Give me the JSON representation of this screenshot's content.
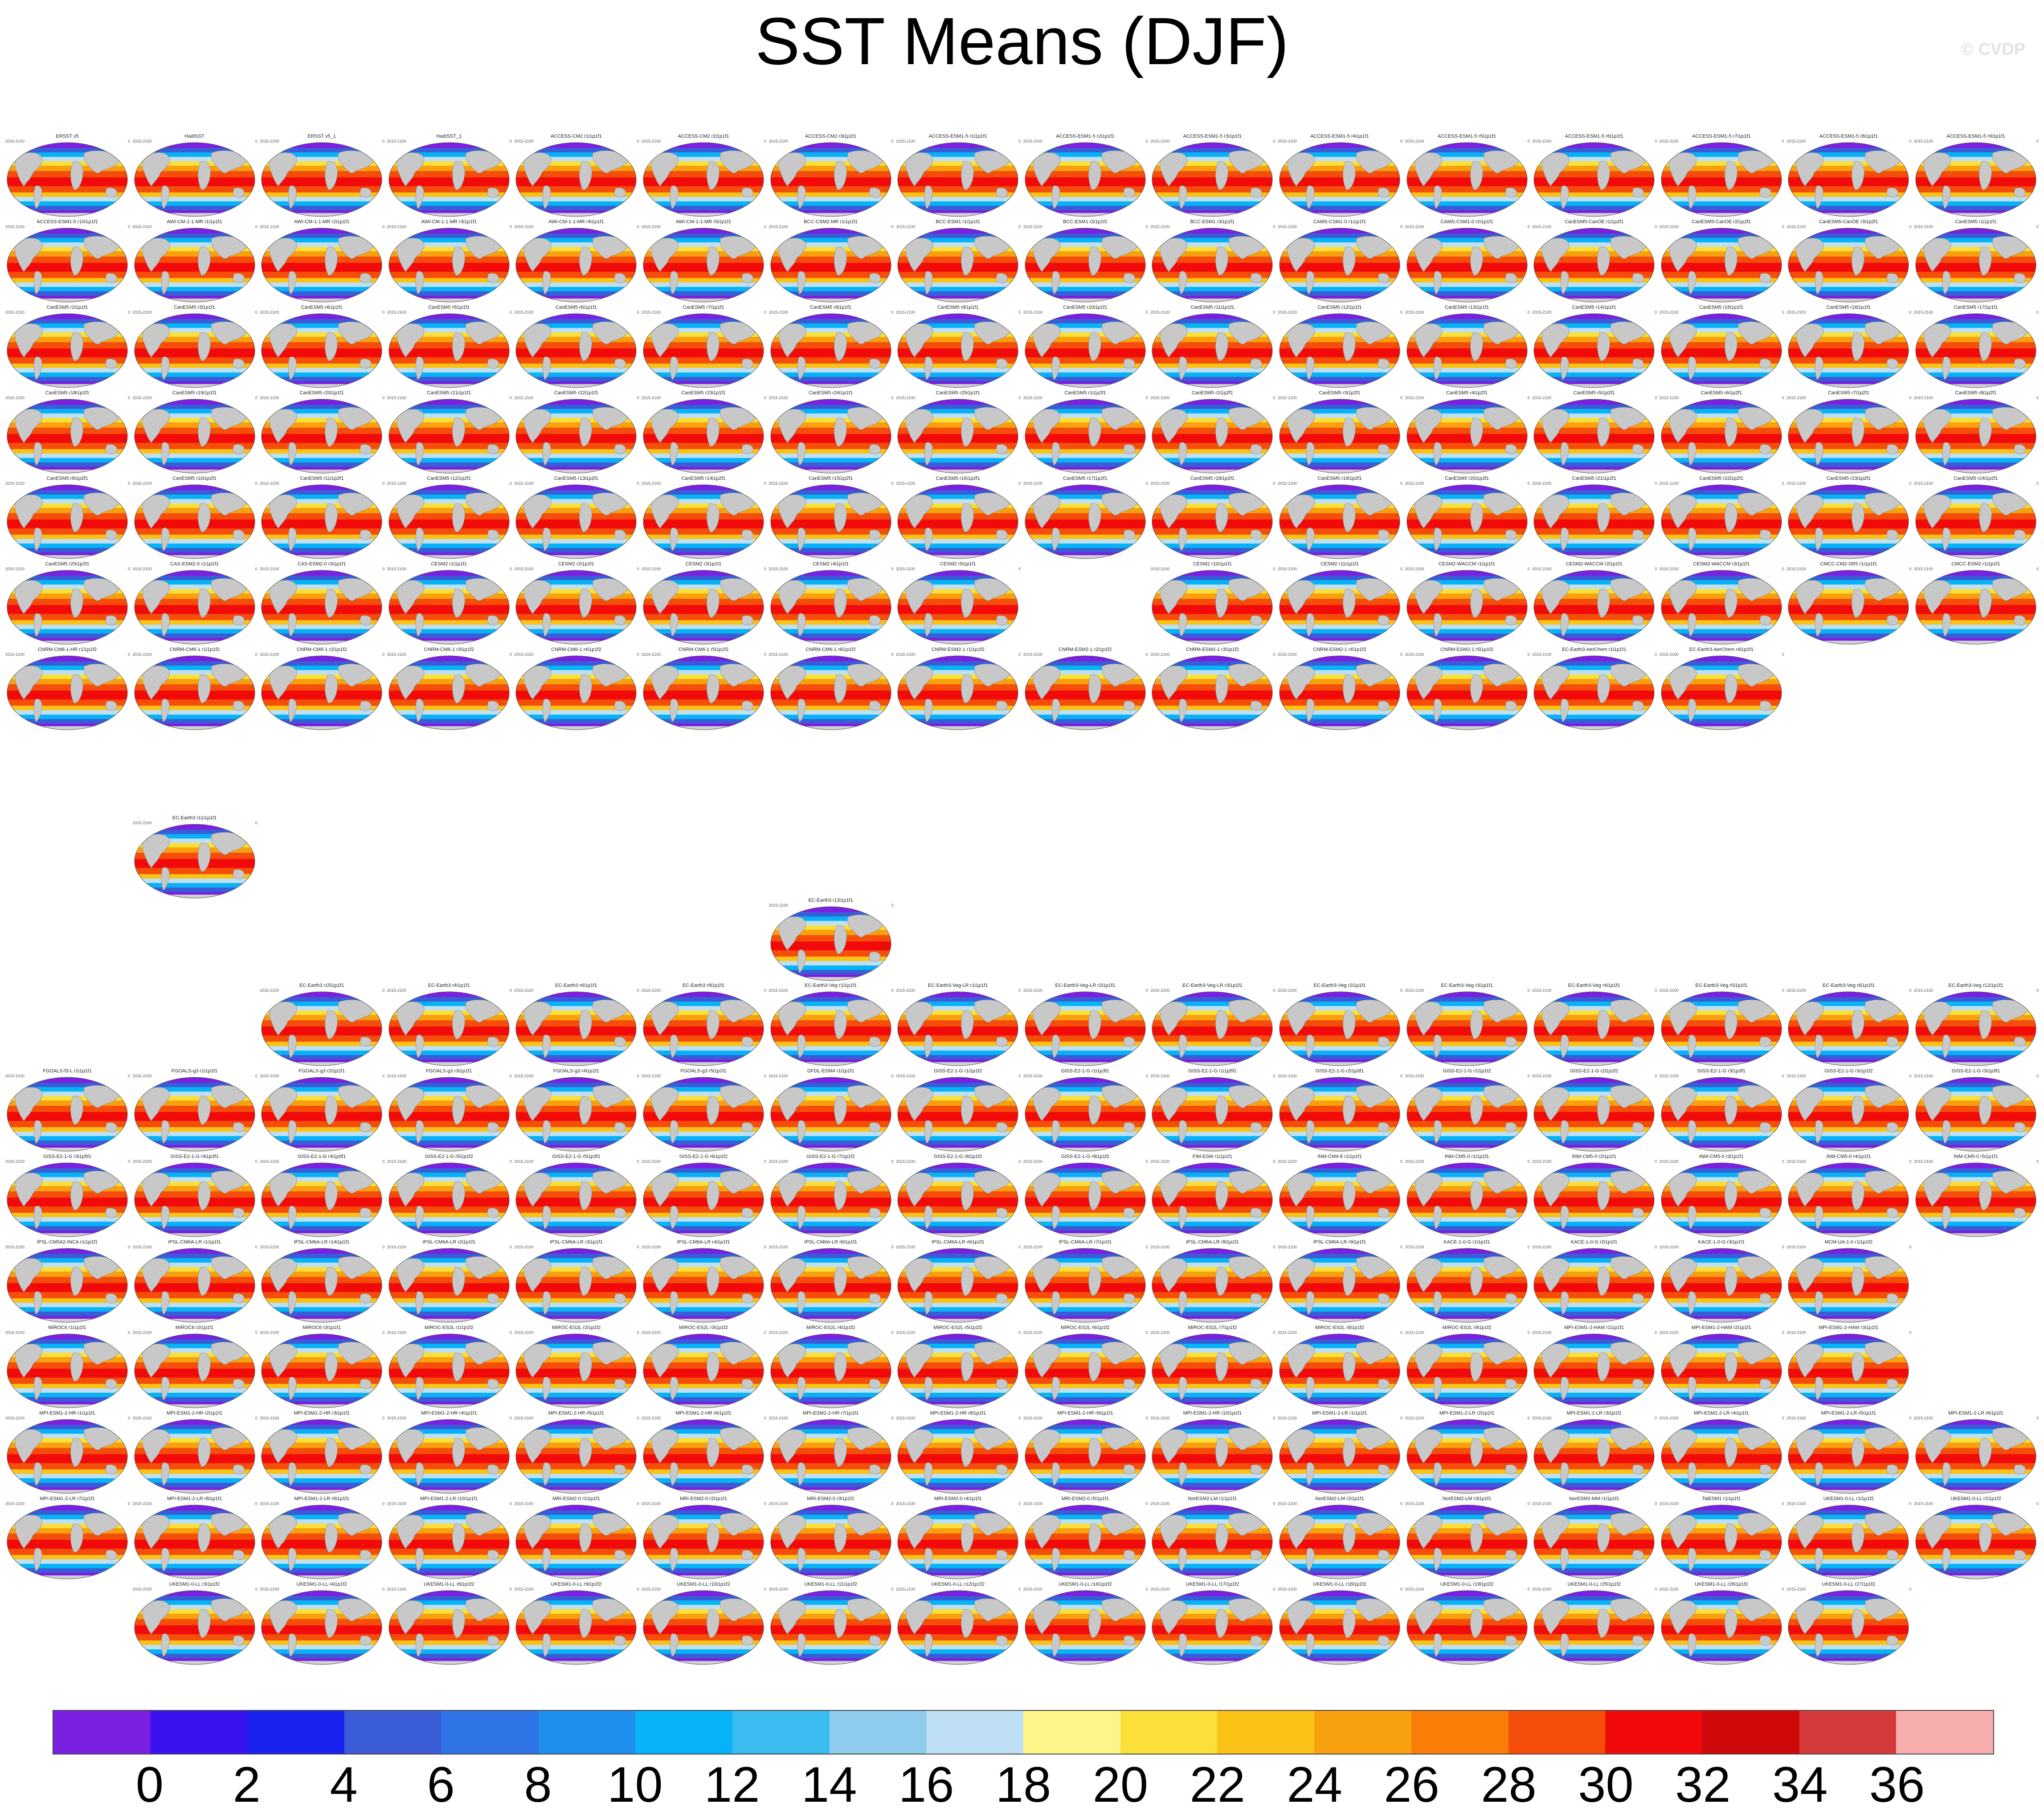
{
  "title": "SST Means (DJF)",
  "watermark": "© CVDP",
  "colorbar": {
    "colors": [
      "#7b1fe0",
      "#3a12f0",
      "#1a22f0",
      "#3a5cd6",
      "#2f74e6",
      "#1f8fee",
      "#06b3f6",
      "#3bbcf0",
      "#8ecbec",
      "#bfe0f4",
      "#fdf58a",
      "#fbe03a",
      "#fbc318",
      "#f9a00e",
      "#f97d06",
      "#f54d0a",
      "#f20a0a",
      "#d00a0a",
      "#d43a3a",
      "#f7aeae"
    ],
    "labels": [
      "0",
      "2",
      "4",
      "6",
      "8",
      "10",
      "12",
      "14",
      "16",
      "18",
      "20",
      "22",
      "24",
      "26",
      "28",
      "30",
      "32",
      "34",
      "36"
    ]
  },
  "row_titles": [
    [
      "ERSST v5",
      "HadISST",
      "ERSST v5_1",
      "HadISST_1",
      "ACCESS-CM2 r1i1p1f1",
      "ACCESS-CM2 r2i1p1f1",
      "ACCESS-CM2 r3i1p1f1",
      "ACCESS-ESM1-5 r1i1p1f1",
      "ACCESS-ESM1-5 r2i1p1f1",
      "ACCESS-ESM1-5 r3i1p1f1",
      "ACCESS-ESM1-5 r4i1p1f1",
      "ACCESS-ESM1-5 r5i1p1f1",
      "ACCESS-ESM1-5 r6i1p1f1",
      "ACCESS-ESM1-5 r7i1p1f1",
      "ACCESS-ESM1-5 r8i1p1f1",
      "ACCESS-ESM1-5 r9i1p1f1"
    ],
    [
      "ACCESS-ESM1-5 r10i1p1f1",
      "AWI-CM-1-1-MR r1i1p1f1",
      "AWI-CM-1-1-MR r2i1p1f1",
      "AWI-CM-1-1-MR r3i1p1f1",
      "AWI-CM-1-1-MR r4i1p1f1",
      "AWI-CM-1-1-MR r5i1p1f1",
      "BCC-CSM2-MR r1i1p1f1",
      "BCC-ESM1 r1i1p1f1",
      "BCC-ESM1 r2i1p1f1",
      "BCC-ESM1 r3i1p1f1",
      "CAMS-CSM1-0 r1i1p1f1",
      "CAMS-CSM1-0 r2i1p1f1",
      "CanESM5-CanOE r1i1p2f1",
      "CanESM5-CanOE r2i1p2f1",
      "CanESM5-CanOE r3i1p2f1",
      "CanESM5 r1i1p1f1"
    ],
    [
      "CanESM5 r2i1p1f1",
      "CanESM5 r3i1p1f1",
      "CanESM5 r4i1p1f1",
      "CanESM5 r5i1p1f1",
      "CanESM5 r6i1p1f1",
      "CanESM5 r7i1p1f1",
      "CanESM5 r8i1p1f1",
      "CanESM5 r9i1p1f1",
      "CanESM5 r10i1p1f1",
      "CanESM5 r11i1p1f1",
      "CanESM5 r12i1p1f1",
      "CanESM5 r13i1p1f1",
      "CanESM5 r14i1p1f1",
      "CanESM5 r15i1p1f1",
      "CanESM5 r16i1p1f1",
      "CanESM5 r17i1p1f1"
    ],
    [
      "CanESM5 r18i1p1f1",
      "CanESM5 r19i1p1f1",
      "CanESM5 r20i1p1f1",
      "CanESM5 r21i1p1f1",
      "CanESM5 r22i1p1f1",
      "CanESM5 r23i1p1f1",
      "CanESM5 r24i1p1f1",
      "CanESM5 r25i1p1f1",
      "CanESM5 r1i1p2f1",
      "CanESM5 r2i1p2f1",
      "CanESM5 r3i1p2f1",
      "CanESM5 r4i1p2f1",
      "CanESM5 r5i1p2f1",
      "CanESM5 r6i1p2f1",
      "CanESM5 r7i1p2f1",
      "CanESM5 r8i1p2f1"
    ],
    [
      "CanESM5 r9i1p2f1",
      "CanESM5 r10i1p2f1",
      "CanESM5 r11i1p2f1",
      "CanESM5 r12i1p2f1",
      "CanESM5 r13i1p2f1",
      "CanESM5 r14i1p2f1",
      "CanESM5 r15i1p2f1",
      "CanESM5 r16i1p2f1",
      "CanESM5 r17i1p2f1",
      "CanESM5 r18i1p2f1",
      "CanESM5 r19i1p2f1",
      "CanESM5 r20i1p2f1",
      "CanESM5 r21i1p2f1",
      "CanESM5 r22i1p2f1",
      "CanESM5 r23i1p2f1",
      "CanESM5 r24i1p2f1"
    ],
    [
      "CanESM5 r25i1p2f1",
      "CAS-ESM2-0 r1i1p1f1",
      "CAS-ESM2-0 r3i1p1f1",
      "CESM2 r1i1p1f1",
      "CESM2 r2i1p1f1",
      "CESM2 r3i1p1f1",
      "CESM2 r4i1p1f1",
      "CESM2 r5i1p1f1",
      "",
      "CESM2 r10i1p1f1",
      "CESM2 r11i1p1f1",
      "CESM2-WACCM r1i1p1f1",
      "CESM2-WACCM r2i1p1f1",
      "CESM2-WACCM r3i1p1f1",
      "CMCC-CM2-SR5 r1i1p1f1",
      "CMCC-ESM2 r1i1p1f1"
    ],
    [
      "CNRM-CM6-1-HR r1i1p1f2",
      "CNRM-CM6-1 r1i1p1f2",
      "CNRM-CM6-1 r2i1p1f2",
      "CNRM-CM6-1 r3i1p1f2",
      "CNRM-CM6-1 r4i1p1f2",
      "CNRM-CM6-1 r5i1p1f2",
      "CNRM-CM6-1 r6i1p1f2",
      "CNRM-ESM2-1 r1i1p1f2",
      "CNRM-ESM2-1 r2i1p1f2",
      "CNRM-ESM2-1 r3i1p1f2",
      "CNRM-ESM2-1 r4i1p1f2",
      "CNRM-ESM2-1 r5i1p1f2",
      "EC-Earth3-AerChem r1i1p1f1",
      "EC-Earth3-AerChem r4i1p1f1"
    ],
    [
      "EC-Earth3 r11i1p1f1"
    ],
    [
      "EC-Earth3 r13i1p1f1"
    ],
    [
      "EC-Earth3 r15i1p1f1",
      "EC-Earth3 r4i1p1f1",
      "EC-Earth3 r6i1p1f1",
      "EC-Earth3 r9i1p1f1",
      "EC-Earth3-Veg r1i1p1f1",
      "EC-Earth3-Veg-LR r1i1p1f1",
      "EC-Earth3-Veg-LR r2i1p1f1",
      "EC-Earth3-Veg-LR r3i1p1f1",
      "EC-Earth3-Veg r2i1p1f1",
      "EC-Earth3-Veg r3i1p1f1",
      "EC-Earth3-Veg r4i1p1f1",
      "EC-Earth3-Veg r5i1p1f1",
      "EC-Earth3-Veg r6i1p1f1",
      "EC-Earth3-Veg r12i1p1f1"
    ],
    [
      "FGOALS-f3-L r1i1p1f1",
      "FGOALS-g3 r1i1p1f1",
      "FGOALS-g3 r2i1p1f1",
      "FGOALS-g3 r3i1p1f1",
      "FGOALS-g3 r4i1p1f1",
      "FGOALS-g3 r5i1p1f1",
      "GFDL-ESM4 r1i1p1f1",
      "GISS-E2-1-G r1i1p1f2",
      "GISS-E2-1-G r1i1p3f1",
      "GISS-E2-1-G r1i1p5f1",
      "GISS-E2-1-G r2i1p3f1",
      "GISS-E2-1-G r1i1p1f2",
      "GISS-E2-1-G r2i1p1f2",
      "GISS-E2-1-G r3i1p3f1",
      "GISS-E2-1-G r3i1p1f2",
      "GISS-E2-1-G r3i1p3f1"
    ],
    [
      "GISS-E2-1-G r3i1p5f1",
      "GISS-E2-1-G r4i1p3f1",
      "GISS-E2-1-G r4i1p5f1",
      "GISS-E2-1-G r5i1p1f2",
      "GISS-E2-1-G r5i1p3f1",
      "GISS-E2-1-G r6i1p1f2",
      "GISS-E2-1-G r7i1p1f2",
      "GISS-E2-1-G r8i1p1f2",
      "GISS-E2-1-G r9i1p1f2",
      "FIM-ESM r1i1p1f1",
      "INM-CM4-8 r1i1p1f1",
      "INM-CM5-0 r1i1p1f1",
      "INM-CM5-0 r2i1p1f1",
      "INM-CM5-0 r3i1p1f1",
      "INM-CM5-0 r4i1p1f1",
      "INM-CM5-0 r5i1p1f1"
    ],
    [
      "IPSL-CM5A2-INCA r1i1p1f1",
      "IPSL-CM6A-LR r1i1p1f1",
      "IPSL-CM6A-LR r14i1p1f1",
      "IPSL-CM6A-LR r2i1p1f1",
      "IPSL-CM6A-LR r3i1p1f1",
      "IPSL-CM6A-LR r4i1p1f1",
      "IPSL-CM6A-LR r6i1p1f1",
      "IPSL-CM6A-LR r6i1p1f1",
      "IPSL-CM6A-LR r7i1p1f1",
      "IPSL-CM6A-LR r8i1p1f1",
      "IPSL-CM6A-LR r9i1p1f1",
      "KACE-1-0-G r1i1p1f1",
      "KACE-1-0-G r2i1p1f1",
      "KACE-1-0-G r3i1p1f1",
      "MCM-UA-1-0 r1i1p1f2"
    ],
    [
      "MIROC6 r1i1p1f1",
      "MIROC6 r2i1p1f1",
      "MIROC6 r3i1p1f1",
      "MIROC-ES2L r1i1p1f2",
      "MIROC-ES2L r2i1p1f2",
      "MIROC-ES2L r3i1p1f2",
      "MIROC-ES2L r4i1p1f2",
      "MIROC-ES2L r5i1p1f2",
      "MIROC-ES2L r6i1p1f2",
      "MIROC-ES2L r7i1p1f2",
      "MIROC-ES2L r8i1p1f2",
      "MIROC-ES2L r9i1p1f2",
      "MPI-ESM1-2-HAM r1i1p1f1",
      "MPI-ESM1-2-HAM r2i1p1f1",
      "MPI-ESM1-2-HAM r3i1p1f1"
    ],
    [
      "MPI-ESM1-2-HR r1i1p1f1",
      "MPI-ESM1-2-HR r2i1p1f1",
      "MPI-ESM1-2-HR r3i1p1f1",
      "MPI-ESM1-2-HR r4i1p1f1",
      "MPI-ESM1-2-HR r5i1p1f1",
      "MPI-ESM1-2-HR r6i1p1f1",
      "MPI-ESM1-2-HR r7i1p1f1",
      "MPI-ESM1-2-HR r8i1p1f1",
      "MPI-ESM1-2-HR r9i1p1f1",
      "MPI-ESM1-2-HR r10i1p1f1",
      "MPI-ESM1-2-LR r1i1p1f1",
      "MPI-ESM1-2-LR r2i1p1f1",
      "MPI-ESM1-2-LR r3i1p1f1",
      "MPI-ESM1-2-LR r4i1p1f1",
      "MPI-ESM1-2-LR r5i1p1f1",
      "MPI-ESM1-2-LR r6i1p1f1"
    ],
    [
      "MPI-ESM1-2-LR r7i1p1f1",
      "MPI-ESM1-2-LR r8i1p1f1",
      "MPI-ESM1-2-LR r9i1p1f1",
      "MPI-ESM1-2-LR r10i1p1f1",
      "MRI-ESM2-0 r1i1p1f1",
      "MRI-ESM2-0 r2i1p1f1",
      "MRI-ESM2-0 r3i1p1f1",
      "MRI-ESM2-0 r4i1p1f1",
      "MRI-ESM2-0 r5i1p1f1",
      "NorESM2-LM r1i1p1f1",
      "NorESM2-LM r2i1p1f1",
      "NorESM2-LM r3i1p1f1",
      "NorESM2-MM r1i1p1f1",
      "TaiESM1 r1i1p1f1",
      "UKESM1-0-LL r1i1p1f2",
      "UKESM1-0-LL r2i1p1f2"
    ],
    [
      "UKESM1-0-LL r3i1p1f2",
      "UKESM1-0-LL r4i1p1f2",
      "UKESM1-0-LL r8i1p1f2",
      "UKESM1-0-LL r9i1p1f2",
      "UKESM1-0-LL r10i1p1f2",
      "UKESM1-0-LL r11i1p1f2",
      "UKESM1-0-LL r12i1p1f2",
      "UKESM1-0-LL r16i1p1f2",
      "UKESM1-0-LL r17i1p1f2",
      "UKESM1-0-LL r18i1p1f2",
      "UKESM1-0-LL r19i1p1f2",
      "UKESM1-0-LL r25i1p1f2",
      "UKESM1-0-LL r26i1p1f2",
      "UKESM1-0-LL r27i1p1f2"
    ]
  ],
  "years_label": "2015-2100",
  "zero_label": "0"
}
